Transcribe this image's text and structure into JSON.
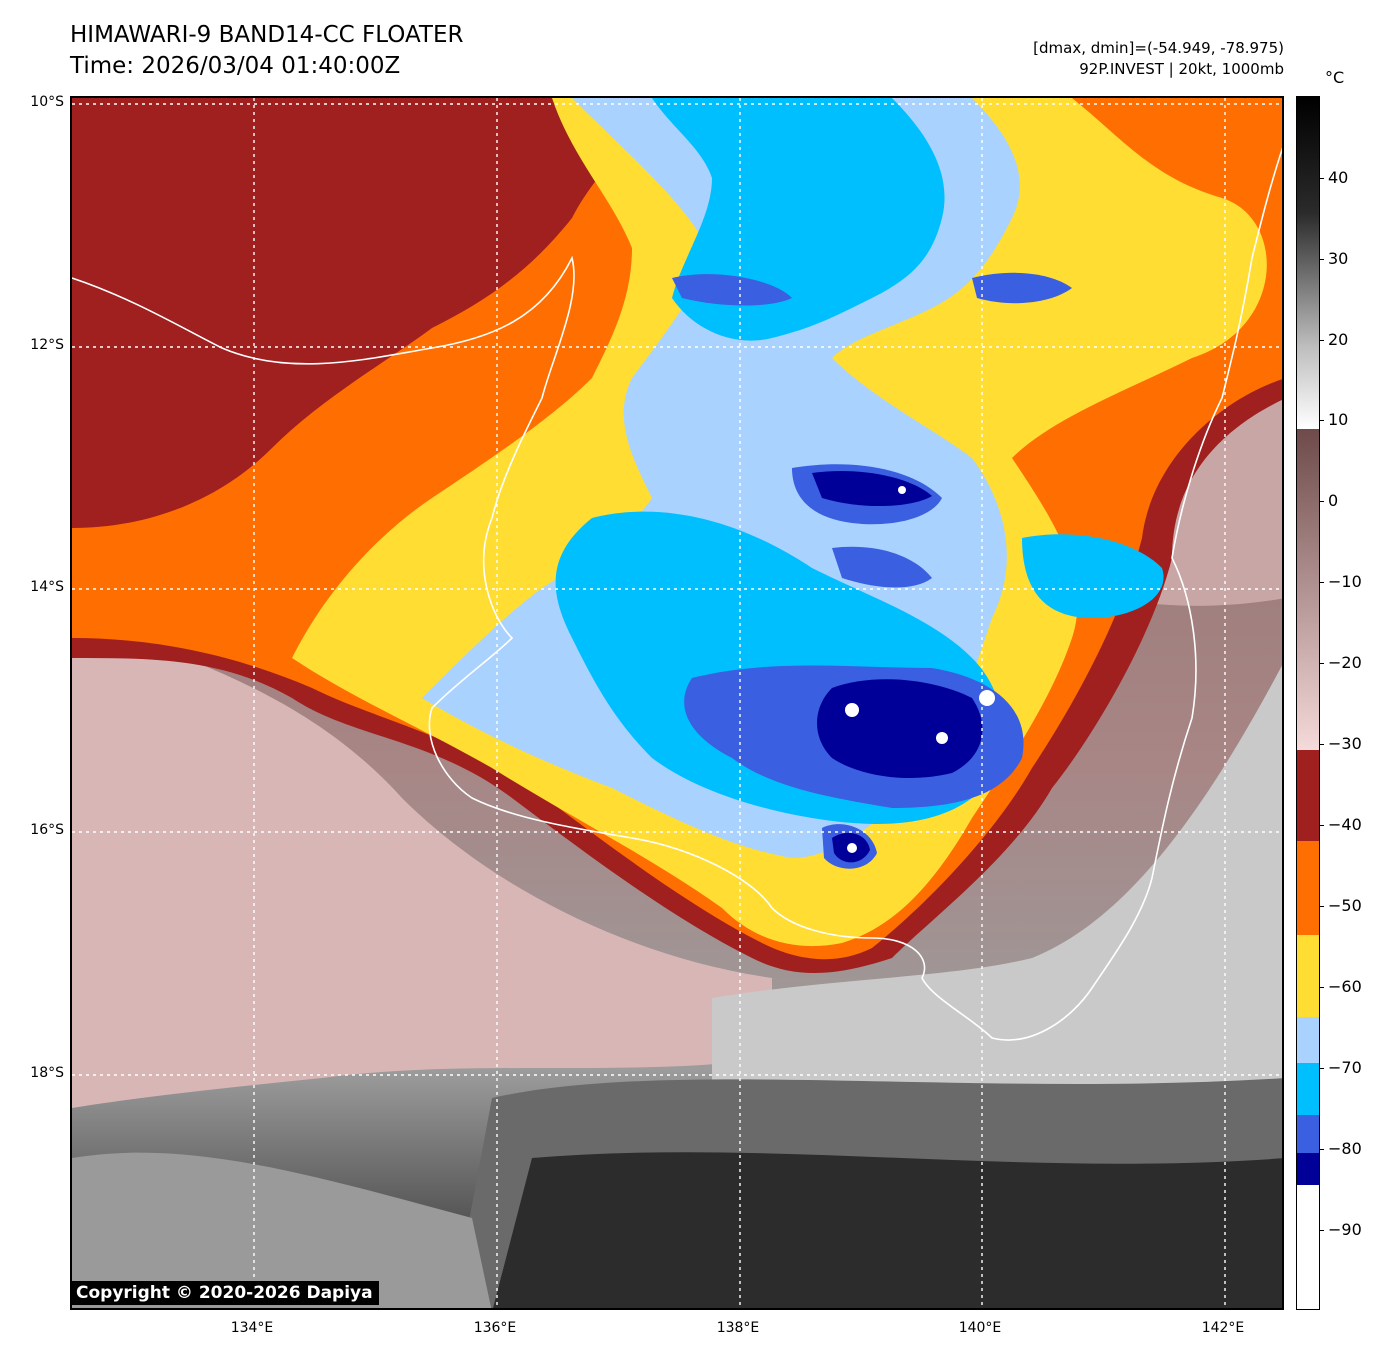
{
  "title": {
    "line1": "HIMAWARI-9 BAND14-CC FLOATER",
    "line2": "Time: 2026/03/04 01:40:00Z"
  },
  "meta": {
    "line1": "[dmax, dmin]=(-54.949, -78.975)",
    "line2": "92P.INVEST | 20kt, 1000mb"
  },
  "map": {
    "lat_labels": [
      "10°S",
      "12°S",
      "14°S",
      "16°S",
      "18°S"
    ],
    "lon_labels": [
      "134°E",
      "136°E",
      "138°E",
      "140°E",
      "142°E"
    ],
    "copyright": "Copyright © 2020-2026 Dapiya"
  },
  "colorbar": {
    "unit": "°C",
    "ticks": [
      "40",
      "30",
      "20",
      "10",
      "0",
      "−10",
      "−20",
      "−30",
      "−40",
      "−50",
      "−60",
      "−70",
      "−80",
      "−90"
    ],
    "colors": {
      "cold_white": "#ffffff",
      "deep_blue": "#000099",
      "royal_blue": "#3a5fe0",
      "cyan": "#00bfff",
      "light_blue": "#a9d2ff",
      "yellow": "#ffdd33",
      "orange": "#ff6e00",
      "dark_red": "#a01f1f",
      "pink": "#f2d4d4",
      "brown": "#6e4a4a",
      "gray_light": "#e0e0e0",
      "black": "#000000"
    }
  }
}
